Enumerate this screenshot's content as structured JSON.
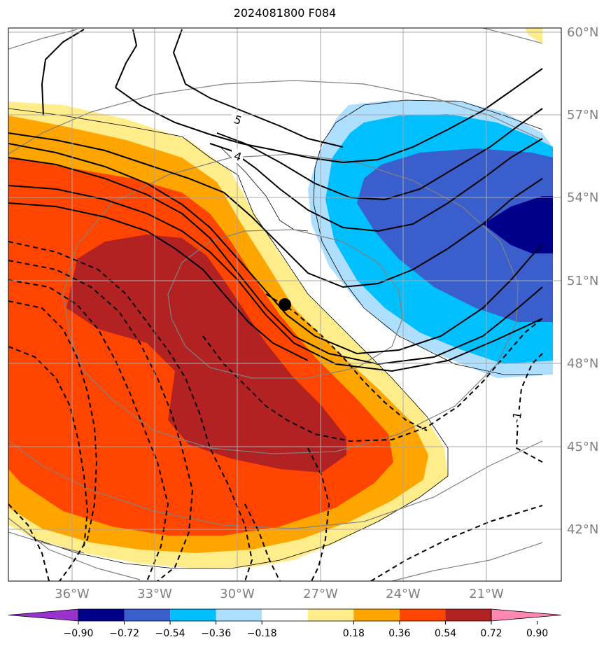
{
  "title": "2024081800 F084",
  "lon_labels": [
    "36°W",
    "33°W",
    "30°W",
    "27°W",
    "24°W",
    "21°W"
  ],
  "lat_labels": [
    "60°N",
    "57°N",
    "54°N",
    "51°N",
    "48°N",
    "45°N",
    "42°N"
  ],
  "contour_labels": [
    "5",
    "4",
    "-1"
  ],
  "marker": {
    "lon": -28.2,
    "lat": 50.2
  },
  "colorbar": {
    "ticks": [
      "−0.90",
      "−0.72",
      "−0.54",
      "−0.36",
      "−0.18",
      "0.18",
      "0.36",
      "0.54",
      "0.72",
      "0.90"
    ],
    "colors": [
      "#9932CC",
      "#00008B",
      "#3A5FCD",
      "#00BFFF",
      "#AEDFFF",
      "#FFFFFF",
      "#FFEC8B",
      "#FFA500",
      "#FF4500",
      "#B22222",
      "#FF88B0"
    ]
  }
}
